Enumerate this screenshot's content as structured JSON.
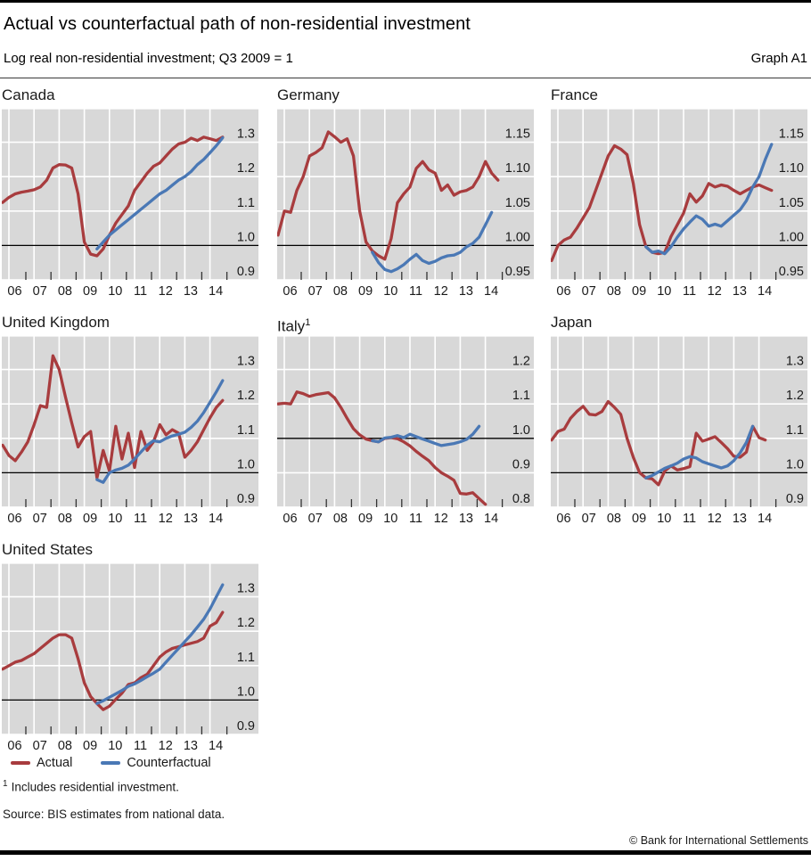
{
  "header": {
    "title": "Actual vs counterfactual path of non-residential investment",
    "subtitle": "Log real non-residential investment; Q3 2009 = 1",
    "graph_label": "Graph A1"
  },
  "legend": {
    "actual_label": "Actual",
    "counterfactual_label": "Counterfactual"
  },
  "footnote": {
    "marker": "1",
    "text": "Includes residential investment."
  },
  "source": "Source: BIS estimates from national data.",
  "copyright": "© Bank for International Settlements",
  "colors": {
    "actual": "#a83c3e",
    "counterfactual": "#4a78b5",
    "panel_bg": "#d8d8d8",
    "grid": "#ffffff",
    "baseline": "#000000",
    "text": "#1a1a1a"
  },
  "x_axis": {
    "years": [
      "06",
      "07",
      "08",
      "09",
      "10",
      "11",
      "12",
      "13",
      "14"
    ]
  },
  "chart_data": [
    {
      "type": "line",
      "title": "Canada",
      "freq": "quarterly",
      "ylim": [
        0.9,
        1.4
      ],
      "baseline": 1.0,
      "ytick_values": [
        1.3,
        1.2,
        1.1,
        1.0,
        0.9
      ],
      "ytick_labels": [
        "1.3",
        "1.2",
        "1.1",
        "1.0",
        "0.9"
      ],
      "series": [
        {
          "name": "Actual",
          "key": "actual",
          "start": "2005 Q4",
          "values": [
            1.125,
            1.14,
            1.15,
            1.155,
            1.158,
            1.162,
            1.17,
            1.19,
            1.225,
            1.235,
            1.234,
            1.225,
            1.15,
            1.01,
            0.975,
            0.97,
            0.99,
            1.03,
            1.065,
            1.09,
            1.115,
            1.16,
            1.185,
            1.21,
            1.23,
            1.24,
            1.26,
            1.28,
            1.295,
            1.3,
            1.312,
            1.305,
            1.315,
            1.31,
            1.305,
            1.315
          ]
        },
        {
          "name": "Counterfactual",
          "key": "counterfactual",
          "start": "2009 Q3",
          "values": [
            0.99,
            1.01,
            1.03,
            1.045,
            1.06,
            1.075,
            1.09,
            1.105,
            1.12,
            1.135,
            1.15,
            1.16,
            1.175,
            1.19,
            1.2,
            1.215,
            1.235,
            1.25,
            1.27,
            1.29,
            1.313
          ]
        }
      ]
    },
    {
      "type": "line",
      "title": "Germany",
      "freq": "quarterly",
      "ylim": [
        0.95,
        1.2
      ],
      "baseline": 1.0,
      "ytick_values": [
        1.15,
        1.1,
        1.05,
        1.0,
        0.95
      ],
      "ytick_labels": [
        "1.15",
        "1.10",
        "1.05",
        "1.00",
        "0.95"
      ],
      "series": [
        {
          "name": "Actual",
          "key": "actual",
          "start": "2005 Q4",
          "values": [
            1.015,
            1.05,
            1.048,
            1.08,
            1.1,
            1.13,
            1.135,
            1.142,
            1.165,
            1.158,
            1.15,
            1.155,
            1.13,
            1.05,
            1.005,
            0.992,
            0.985,
            0.98,
            1.01,
            1.062,
            1.075,
            1.085,
            1.112,
            1.122,
            1.11,
            1.105,
            1.08,
            1.088,
            1.073,
            1.078,
            1.08,
            1.085,
            1.1,
            1.122,
            1.105,
            1.095
          ]
        },
        {
          "name": "Counterfactual",
          "key": "counterfactual",
          "start": "2009 Q3",
          "values": [
            0.99,
            0.975,
            0.965,
            0.962,
            0.966,
            0.972,
            0.98,
            0.987,
            0.978,
            0.974,
            0.977,
            0.982,
            0.985,
            0.986,
            0.99,
            0.998,
            1.003,
            1.012,
            1.03,
            1.048
          ]
        }
      ]
    },
    {
      "type": "line",
      "title": "France",
      "freq": "quarterly",
      "ylim": [
        0.95,
        1.2
      ],
      "baseline": 1.0,
      "ytick_values": [
        1.15,
        1.1,
        1.05,
        1.0,
        0.95
      ],
      "ytick_labels": [
        "1.15",
        "1.10",
        "1.05",
        "1.00",
        "0.95"
      ],
      "series": [
        {
          "name": "Actual",
          "key": "actual",
          "start": "2005 Q4",
          "values": [
            0.978,
            1.0,
            1.008,
            1.012,
            1.025,
            1.04,
            1.055,
            1.08,
            1.105,
            1.13,
            1.145,
            1.14,
            1.132,
            1.09,
            1.03,
            0.998,
            0.99,
            0.988,
            0.99,
            1.013,
            1.03,
            1.047,
            1.075,
            1.063,
            1.072,
            1.09,
            1.085,
            1.088,
            1.086,
            1.08,
            1.075,
            1.08,
            1.085,
            1.088,
            1.084,
            1.08
          ]
        },
        {
          "name": "Counterfactual",
          "key": "counterfactual",
          "start": "2009 Q3",
          "values": [
            0.998,
            0.99,
            0.992,
            0.988,
            0.998,
            1.012,
            1.024,
            1.034,
            1.043,
            1.038,
            1.028,
            1.031,
            1.028,
            1.036,
            1.044,
            1.052,
            1.065,
            1.085,
            1.1,
            1.125,
            1.147
          ]
        }
      ]
    },
    {
      "type": "line",
      "title": "United Kingdom",
      "freq": "quarterly",
      "ylim": [
        0.9,
        1.4
      ],
      "baseline": 1.0,
      "ytick_values": [
        1.3,
        1.2,
        1.1,
        1.0,
        0.9
      ],
      "ytick_labels": [
        "1.3",
        "1.2",
        "1.1",
        "1.0",
        "0.9"
      ],
      "series": [
        {
          "name": "Actual",
          "key": "actual",
          "start": "2005 Q4",
          "values": [
            1.08,
            1.05,
            1.035,
            1.06,
            1.09,
            1.14,
            1.195,
            1.19,
            1.34,
            1.3,
            1.22,
            1.145,
            1.075,
            1.105,
            1.12,
            0.985,
            1.065,
            1.005,
            1.135,
            1.04,
            1.115,
            1.015,
            1.12,
            1.065,
            1.09,
            1.14,
            1.11,
            1.125,
            1.115,
            1.045,
            1.065,
            1.09,
            1.125,
            1.16,
            1.19,
            1.21
          ]
        },
        {
          "name": "Counterfactual",
          "key": "counterfactual",
          "start": "2009 Q3",
          "values": [
            0.98,
            0.972,
            1.0,
            1.008,
            1.013,
            1.022,
            1.04,
            1.06,
            1.08,
            1.093,
            1.09,
            1.1,
            1.107,
            1.112,
            1.118,
            1.132,
            1.15,
            1.175,
            1.205,
            1.235,
            1.268
          ]
        }
      ]
    },
    {
      "type": "line",
      "title": "Italy",
      "title_sup": "1",
      "freq": "quarterly",
      "ylim": [
        0.8,
        1.3
      ],
      "baseline": 1.0,
      "ytick_values": [
        1.2,
        1.1,
        1.0,
        0.9,
        0.8
      ],
      "ytick_labels": [
        "1.2",
        "1.1",
        "1.0",
        "0.9",
        "0.8"
      ],
      "series": [
        {
          "name": "Actual",
          "key": "actual",
          "start": "2005 Q4",
          "values": [
            1.1,
            1.102,
            1.1,
            1.135,
            1.13,
            1.122,
            1.127,
            1.13,
            1.133,
            1.118,
            1.09,
            1.058,
            1.028,
            1.01,
            0.998,
            0.993,
            0.99,
            1.0,
            1.002,
            0.999,
            0.99,
            0.978,
            0.962,
            0.948,
            0.935,
            0.915,
            0.9,
            0.89,
            0.878,
            0.84,
            0.838,
            0.842,
            0.825,
            0.808
          ]
        },
        {
          "name": "Counterfactual",
          "key": "counterfactual",
          "start": "2009 Q3",
          "values": [
            0.993,
            0.99,
            1.001,
            1.003,
            1.008,
            1.002,
            1.012,
            1.005,
            0.998,
            0.992,
            0.985,
            0.979,
            0.982,
            0.985,
            0.99,
            0.997,
            1.012,
            1.035
          ]
        }
      ]
    },
    {
      "type": "line",
      "title": "Japan",
      "freq": "quarterly",
      "ylim": [
        0.9,
        1.4
      ],
      "baseline": 1.0,
      "ytick_values": [
        1.3,
        1.2,
        1.1,
        1.0,
        0.9
      ],
      "ytick_labels": [
        "1.3",
        "1.2",
        "1.1",
        "1.0",
        "0.9"
      ],
      "series": [
        {
          "name": "Actual",
          "key": "actual",
          "start": "2005 Q4",
          "values": [
            1.095,
            1.12,
            1.127,
            1.158,
            1.178,
            1.193,
            1.17,
            1.168,
            1.178,
            1.207,
            1.19,
            1.17,
            1.1,
            1.045,
            1.0,
            0.985,
            0.982,
            0.965,
            1.005,
            1.02,
            1.008,
            1.012,
            1.018,
            1.115,
            1.092,
            1.098,
            1.105,
            1.088,
            1.07,
            1.048,
            1.045,
            1.06,
            1.135,
            1.102,
            1.095
          ]
        },
        {
          "name": "Counterfactual",
          "key": "counterfactual",
          "start": "2009 Q3",
          "values": [
            0.985,
            0.992,
            1.002,
            1.013,
            1.02,
            1.028,
            1.04,
            1.047,
            1.043,
            1.032,
            1.026,
            1.02,
            1.014,
            1.02,
            1.035,
            1.058,
            1.088,
            1.135
          ]
        }
      ]
    },
    {
      "type": "line",
      "title": "United States",
      "freq": "quarterly",
      "ylim": [
        0.9,
        1.4
      ],
      "baseline": 1.0,
      "ytick_values": [
        1.3,
        1.2,
        1.1,
        1.0,
        0.9
      ],
      "ytick_labels": [
        "1.3",
        "1.2",
        "1.1",
        "1.0",
        "0.9"
      ],
      "series": [
        {
          "name": "Actual",
          "key": "actual",
          "start": "2005 Q4",
          "values": [
            1.09,
            1.1,
            1.11,
            1.115,
            1.125,
            1.135,
            1.15,
            1.165,
            1.18,
            1.19,
            1.19,
            1.18,
            1.12,
            1.05,
            1.01,
            0.99,
            0.972,
            0.982,
            1.002,
            1.02,
            1.045,
            1.05,
            1.065,
            1.075,
            1.1,
            1.125,
            1.14,
            1.15,
            1.155,
            1.16,
            1.165,
            1.17,
            1.18,
            1.215,
            1.225,
            1.255
          ]
        },
        {
          "name": "Counterfactual",
          "key": "counterfactual",
          "start": "2009 Q3",
          "values": [
            0.99,
            0.998,
            1.008,
            1.018,
            1.028,
            1.04,
            1.047,
            1.057,
            1.068,
            1.078,
            1.09,
            1.11,
            1.13,
            1.15,
            1.17,
            1.19,
            1.212,
            1.235,
            1.265,
            1.3,
            1.335
          ]
        }
      ]
    }
  ]
}
